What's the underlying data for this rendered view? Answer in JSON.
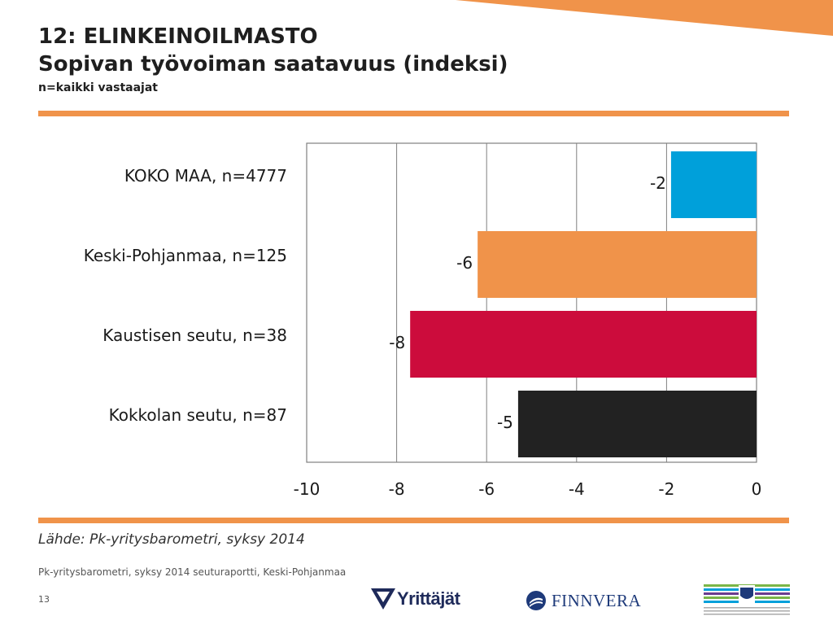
{
  "header": {
    "title_line1": "12: ELINKEINOILMASTO",
    "title_line2": "Sopivan työvoiman saatavuus (indeksi)",
    "subtitle": "n=kaikki vastaajat"
  },
  "chart_data": {
    "type": "bar",
    "orientation": "horizontal",
    "categories": [
      "KOKO MAA, n=4777",
      "Keski-Pohjanmaa, n=125",
      "Kaustisen seutu, n=38",
      "Kokkolan seutu, n=87"
    ],
    "values": [
      -1.9,
      -6.2,
      -7.7,
      -5.3
    ],
    "data_labels": [
      "-2",
      "-6",
      "-8",
      "-5"
    ],
    "colors": [
      "#00a0da",
      "#f0934a",
      "#cc0c3c",
      "#222222"
    ],
    "xlim": [
      -10,
      0
    ],
    "xticks": [
      -10,
      -8,
      -6,
      -4,
      -2,
      0
    ],
    "xtick_labels": [
      "-10",
      "-8",
      "-6",
      "-4",
      "-2",
      "0"
    ],
    "grid": true,
    "legend": "none"
  },
  "source": "Lähde: Pk-yritysbarometri, syksy 2014",
  "footer": {
    "report": "Pk-yritysbarometri, syksy 2014 seuturaportti, Keski-Pohjanmaa",
    "page_number": "13"
  },
  "logos": {
    "yrittajat": "Yrittäjät",
    "finnvera": "FINNVERA"
  },
  "accent_color": "#f0934a"
}
